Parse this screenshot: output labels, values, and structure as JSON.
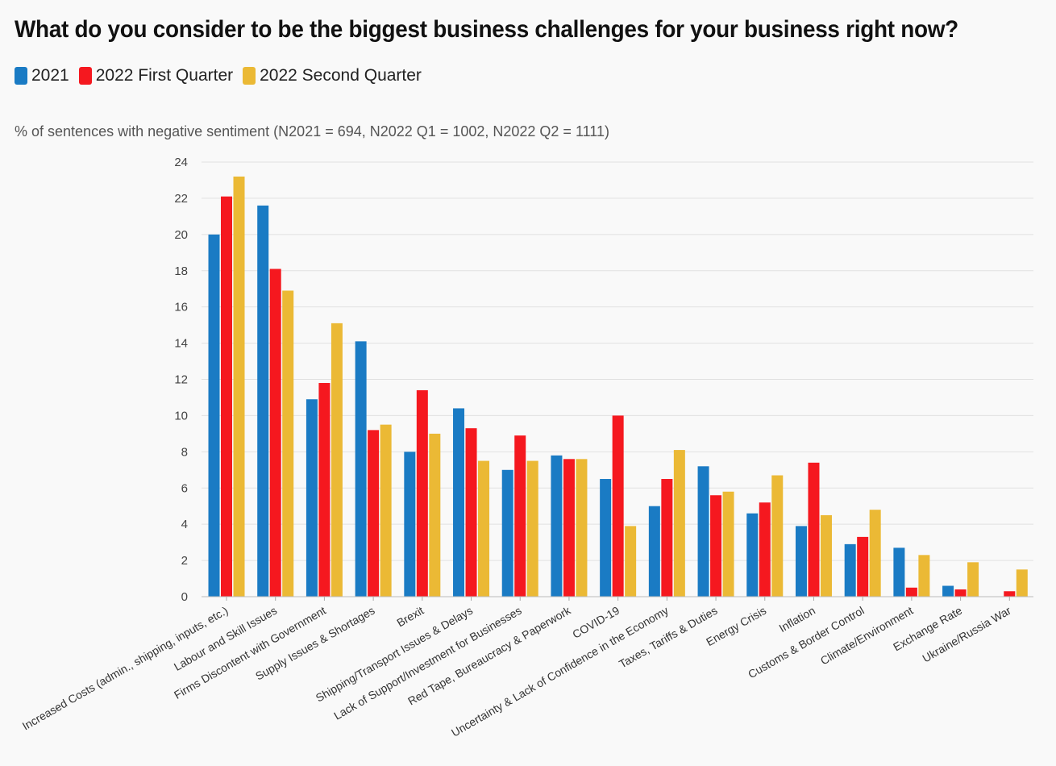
{
  "header": {
    "title": "What do you consider to be the biggest business challenges for your business right now?",
    "subtitle": "% of sentences with negative sentiment (N2021 = 694, N2022 Q1 = 1002, N2022 Q2 = 1111)"
  },
  "legend": {
    "items": [
      {
        "label": "2021",
        "color": "#1a7bc4"
      },
      {
        "label": "2022 First Quarter",
        "color": "#f5181f"
      },
      {
        "label": "2022 Second Quarter",
        "color": "#ebb935"
      }
    ]
  },
  "chart_data": {
    "type": "bar",
    "title": "What do you consider to be the biggest business challenges for your business right now?",
    "subtitle": "% of sentences with negative sentiment (N2021 = 694, N2022 Q1 = 1002, N2022 Q2 = 1111)",
    "ylim": [
      0,
      24
    ],
    "yticks": [
      0,
      2,
      4,
      6,
      8,
      10,
      12,
      14,
      16,
      18,
      20,
      22,
      24
    ],
    "grid": true,
    "legend_position": "top-left",
    "categories": [
      "Increased Costs (admin., shipping, inputs, etc.)",
      "Labour and Skill Issues",
      "Firms Discontent with Government",
      "Supply Issues & Shortages",
      "Brexit",
      "Shipping/Transport Issues & Delays",
      "Lack of Support/Investment for Businesses",
      "Red Tape, Bureaucracy & Paperwork",
      "COVID-19",
      "Uncertainty & Lack of Confidence in the Economy",
      "Taxes, Tariffs & Duties",
      "Energy Crisis",
      "Inflation",
      "Customs & Border Control",
      "Climate/Environment",
      "Exchange Rate",
      "Ukraine/Russia War"
    ],
    "series": [
      {
        "name": "2021",
        "color": "#1a7bc4",
        "values": [
          20.0,
          21.6,
          10.9,
          14.1,
          8.0,
          10.4,
          7.0,
          7.8,
          6.5,
          5.0,
          7.2,
          4.6,
          3.9,
          2.9,
          2.7,
          0.6,
          null
        ]
      },
      {
        "name": "2022 First Quarter",
        "color": "#f5181f",
        "values": [
          22.1,
          18.1,
          11.8,
          9.2,
          11.4,
          9.3,
          8.9,
          7.6,
          10.0,
          6.5,
          5.6,
          5.2,
          7.4,
          3.3,
          0.5,
          0.4,
          0.3
        ]
      },
      {
        "name": "2022 Second Quarter",
        "color": "#ebb935",
        "values": [
          23.2,
          16.9,
          15.1,
          9.5,
          9.0,
          7.5,
          7.5,
          7.6,
          3.9,
          8.1,
          5.8,
          6.7,
          4.5,
          4.8,
          2.3,
          1.9,
          1.5
        ]
      }
    ]
  }
}
